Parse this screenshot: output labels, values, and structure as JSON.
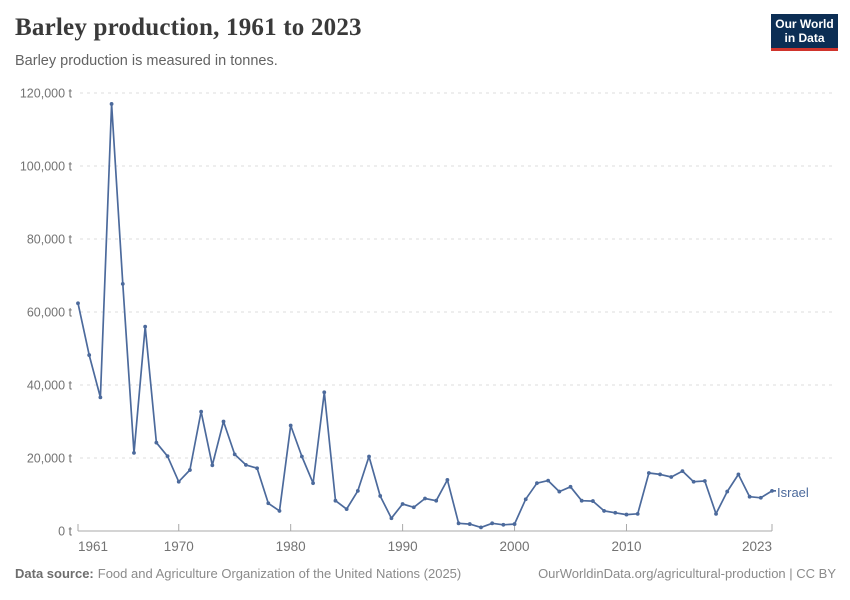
{
  "header": {
    "title": "Barley production, 1961 to 2023",
    "subtitle": "Barley production is measured in tonnes."
  },
  "logo": {
    "line1": "Our World",
    "line2": "in Data",
    "bg_color": "#0c2e54",
    "accent_color": "#d0342c"
  },
  "chart_data": {
    "type": "line",
    "title": "Barley production, 1961 to 2023",
    "subtitle": "Barley production is measured in tonnes.",
    "xlabel": "",
    "ylabel": "",
    "xlim": [
      1961,
      2023
    ],
    "ylim": [
      0,
      120000
    ],
    "grid": "horizontal-dashed",
    "legend_position": "end-of-line",
    "x_ticks": [
      1961,
      1970,
      1980,
      1990,
      2000,
      2010,
      2023
    ],
    "y_ticks": [
      0,
      20000,
      40000,
      60000,
      80000,
      100000,
      120000
    ],
    "y_tick_suffix": " t",
    "series": [
      {
        "name": "Israel",
        "color": "#4c6a9c",
        "x": [
          1961,
          1962,
          1963,
          1964,
          1965,
          1966,
          1967,
          1968,
          1969,
          1970,
          1971,
          1972,
          1973,
          1974,
          1975,
          1976,
          1977,
          1978,
          1979,
          1980,
          1981,
          1982,
          1983,
          1984,
          1985,
          1986,
          1987,
          1988,
          1989,
          1990,
          1991,
          1992,
          1993,
          1994,
          1995,
          1996,
          1997,
          1998,
          1999,
          2000,
          2001,
          2002,
          2003,
          2004,
          2005,
          2006,
          2007,
          2008,
          2009,
          2010,
          2011,
          2012,
          2013,
          2014,
          2015,
          2016,
          2017,
          2018,
          2019,
          2020,
          2021,
          2022,
          2023
        ],
        "values": [
          62400,
          48200,
          36600,
          117000,
          67700,
          21400,
          56000,
          24200,
          20500,
          13500,
          16700,
          32700,
          18000,
          30000,
          21000,
          18100,
          17200,
          7600,
          5500,
          28900,
          20400,
          13100,
          38000,
          8300,
          6000,
          11000,
          20400,
          9600,
          3500,
          7400,
          6500,
          8900,
          8300,
          14000,
          2100,
          1900,
          1000,
          2100,
          1700,
          1900,
          8700,
          13100,
          13800,
          10800,
          12100,
          8300,
          8200,
          5500,
          5000,
          4500,
          4700,
          15900,
          15500,
          14800,
          16400,
          13500,
          13700,
          4700,
          10800,
          15500,
          9400,
          9100,
          11000
        ]
      }
    ]
  },
  "footer": {
    "datasource_label": "Data source:",
    "datasource": "Food and Agriculture Organization of the United Nations (2025)",
    "attribution": "OurWorldinData.org/agricultural-production | CC BY"
  }
}
